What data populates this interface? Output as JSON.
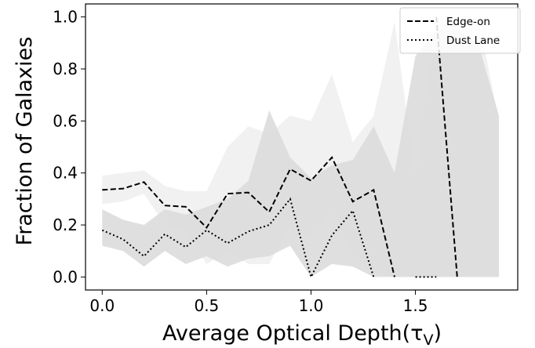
{
  "chart_data": {
    "type": "line",
    "title": "",
    "xlabel": "Average Optical Depth",
    "xlabel_math": "(τ",
    "xlabel_math_sub": "V",
    "xlabel_math_close": ")",
    "ylabel": "Fraction of Galaxies",
    "xlim": [
      -0.08,
      1.99
    ],
    "ylim": [
      -0.05,
      1.05
    ],
    "xticks": [
      0.0,
      0.5,
      1.0,
      1.5
    ],
    "xtick_labels": [
      "0.0",
      "0.5",
      "1.0",
      "1.5"
    ],
    "yticks": [
      0.0,
      0.2,
      0.4,
      0.6,
      0.8,
      1.0
    ],
    "ytick_labels": [
      "0.0",
      "0.2",
      "0.4",
      "0.6",
      "0.8",
      "1.0"
    ],
    "grid": false,
    "legend_position": "top-right",
    "x": [
      0.0,
      0.1,
      0.2,
      0.3,
      0.4,
      0.5,
      0.6,
      0.7,
      0.8,
      0.9,
      1.0,
      1.1,
      1.2,
      1.3,
      1.4,
      1.5,
      1.6,
      1.7,
      1.8,
      1.9
    ],
    "series": [
      {
        "name": "Edge-on",
        "style": "dashed",
        "color": "#000000",
        "values": [
          0.335,
          0.34,
          0.365,
          0.275,
          0.27,
          0.19,
          0.32,
          0.325,
          0.25,
          0.415,
          0.37,
          0.46,
          0.29,
          0.335,
          0.0,
          null,
          1.0,
          0.0,
          null,
          null
        ],
        "band_color": "#f0f0f0",
        "band_lower": [
          0.28,
          0.29,
          0.32,
          0.2,
          0.18,
          0.05,
          0.1,
          0.05,
          0.05,
          0.2,
          0.15,
          0.25,
          0.08,
          0.02,
          0.0,
          0.0,
          0.0,
          0.0,
          0.0,
          0.0
        ],
        "band_upper": [
          0.39,
          0.4,
          0.41,
          0.35,
          0.33,
          0.33,
          0.5,
          0.58,
          0.55,
          0.62,
          0.6,
          0.78,
          0.52,
          0.62,
          0.98,
          0.38,
          1.0,
          0.98,
          1.0,
          0.6
        ]
      },
      {
        "name": "Dust Lane",
        "style": "dotted",
        "color": "#000000",
        "values": [
          0.18,
          0.145,
          0.08,
          0.165,
          0.115,
          0.18,
          0.13,
          0.175,
          0.2,
          0.3,
          0.0,
          0.16,
          0.255,
          0.0,
          null,
          0.0,
          0.0,
          null,
          null,
          null
        ],
        "band_color": "#dcdcdc",
        "band_lower": [
          0.12,
          0.1,
          0.04,
          0.1,
          0.05,
          0.08,
          0.04,
          0.07,
          0.08,
          0.12,
          0.0,
          0.05,
          0.04,
          0.0,
          0.0,
          0.0,
          0.0,
          0.0,
          0.0,
          0.0
        ],
        "band_upper": [
          0.26,
          0.22,
          0.2,
          0.26,
          0.24,
          0.27,
          0.3,
          0.37,
          0.64,
          0.46,
          0.38,
          0.43,
          0.45,
          0.58,
          0.4,
          0.85,
          0.95,
          0.95,
          0.9,
          0.62
        ]
      }
    ]
  }
}
